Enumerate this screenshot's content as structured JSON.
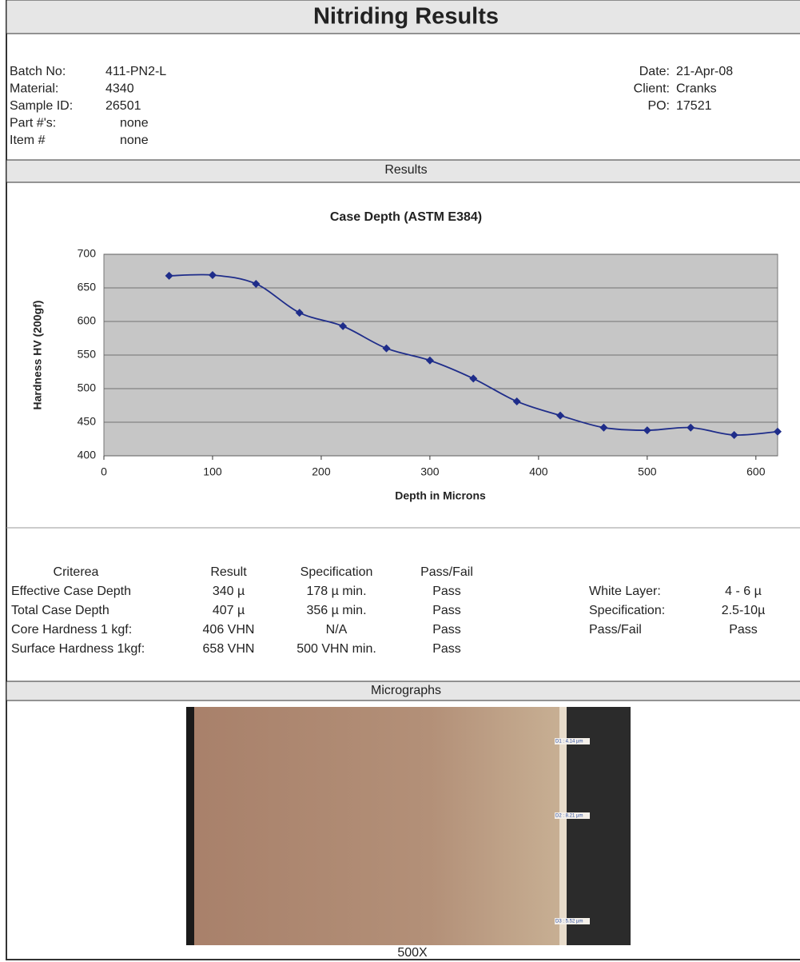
{
  "header": {
    "title": "Nitriding Results"
  },
  "info": {
    "left": [
      [
        "Batch No:",
        "411-PN2-L"
      ],
      [
        "Material:",
        "4340"
      ],
      [
        "Sample ID:",
        "26501"
      ],
      [
        "Part #'s:",
        "none"
      ],
      [
        "Item #",
        "none"
      ]
    ],
    "right": [
      [
        "Date:",
        "21-Apr-08"
      ],
      [
        "Client:",
        "Cranks"
      ],
      [
        "PO:",
        "17521"
      ]
    ]
  },
  "sections": {
    "results": "Results",
    "micrographs": "Micrographs"
  },
  "chart_data": {
    "type": "line",
    "title": "Case Depth (ASTM E384)",
    "xlabel": "Depth in Microns",
    "ylabel": "Hardness HV (200gf)",
    "x": [
      60,
      100,
      140,
      180,
      220,
      260,
      300,
      340,
      380,
      420,
      460,
      500,
      540,
      580,
      620
    ],
    "values": [
      668,
      669,
      656,
      613,
      593,
      560,
      542,
      515,
      481,
      460,
      442,
      438,
      442,
      431,
      436
    ],
    "color": "#1f2d8a",
    "xlim": [
      0,
      620
    ],
    "xticks": [
      0,
      100,
      200,
      300,
      400,
      500,
      600
    ],
    "ylim": [
      400,
      700
    ],
    "yticks": [
      400,
      450,
      500,
      550,
      600,
      650,
      700
    ],
    "grid": true
  },
  "criteria": {
    "header": [
      "Criterea",
      "Result",
      "Specification",
      "Pass/Fail"
    ],
    "rows": [
      [
        "Effective Case Depth",
        "340 µ",
        "178 µ min.",
        "Pass"
      ],
      [
        "Total Case Depth",
        "407 µ",
        "356 µ min.",
        "Pass"
      ],
      [
        "Core Hardness 1 kgf:",
        "406 VHN",
        "N/A",
        "Pass"
      ],
      [
        "Surface Hardness 1kgf:",
        "658 VHN",
        "500 VHN min.",
        "Pass"
      ]
    ]
  },
  "white_layer": [
    [
      "White Layer:",
      "4 - 6 µ"
    ],
    [
      "Specification:",
      "2.5-10µ"
    ],
    [
      "Pass/Fail",
      "Pass"
    ]
  ],
  "micrograph": {
    "caption": "500X",
    "measurements": [
      "D1 : 4.14 µm",
      "D2 : 8.21 µm",
      "D3 : 5.52 µm"
    ]
  }
}
